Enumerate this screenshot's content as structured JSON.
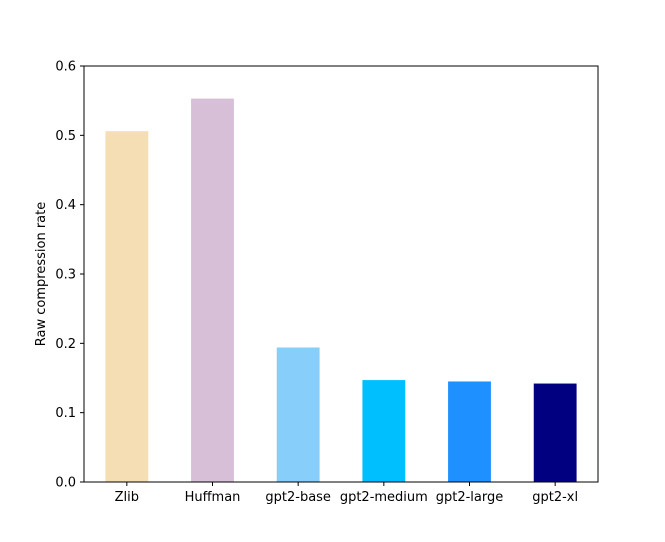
{
  "chart_data": {
    "type": "bar",
    "title": "",
    "xlabel": "",
    "ylabel": "Raw compression rate",
    "ylim": [
      0,
      0.6
    ],
    "yticks": [
      0.0,
      0.1,
      0.2,
      0.3,
      0.4,
      0.5,
      0.6
    ],
    "ytick_labels": [
      "0.0",
      "0.1",
      "0.2",
      "0.3",
      "0.4",
      "0.5",
      "0.6"
    ],
    "grid": false,
    "categories": [
      "Zlib",
      "Huffman",
      "gpt2-base",
      "gpt2-medium",
      "gpt2-large",
      "gpt2-xl"
    ],
    "values": [
      0.506,
      0.553,
      0.194,
      0.147,
      0.145,
      0.142
    ],
    "colors": [
      "#F5DEB3",
      "#D8BFD8",
      "#87CEFA",
      "#00BFFF",
      "#1E90FF",
      "#000080"
    ]
  }
}
